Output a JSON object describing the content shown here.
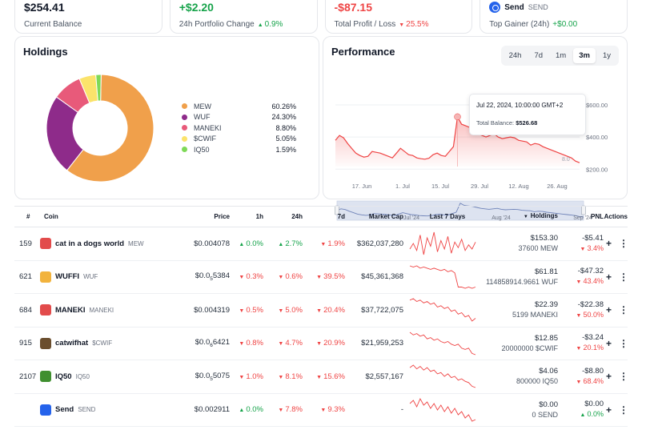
{
  "stats": [
    {
      "value": "$254.41",
      "label": "Current Balance"
    },
    {
      "value": "+$2.20",
      "label": "24h Portfolio Change",
      "change": "0.9%"
    },
    {
      "value": "-$87.15",
      "label": "Total Profit / Loss",
      "change": "25.5%"
    },
    {
      "coin_name": "Send",
      "coin_symbol": "SEND",
      "label": "Top Gainer (24h)",
      "change": "+$0.00"
    }
  ],
  "holdings": {
    "title": "Holdings",
    "items": [
      {
        "name": "MEW",
        "pct": "60.26%",
        "value": 60.26,
        "color": "#f0a04b"
      },
      {
        "name": "WUF",
        "pct": "24.30%",
        "value": 24.3,
        "color": "#8e2b8a"
      },
      {
        "name": "MANEKI",
        "pct": "8.80%",
        "value": 8.8,
        "color": "#e85a7a"
      },
      {
        "name": "$CWIF",
        "pct": "5.05%",
        "value": 5.05,
        "color": "#fbe36b"
      },
      {
        "name": "IQ50",
        "pct": "1.59%",
        "value": 1.59,
        "color": "#7ed957"
      }
    ]
  },
  "performance": {
    "title": "Performance",
    "ranges": [
      "24h",
      "7d",
      "1m",
      "3m",
      "1y"
    ],
    "active_range": "3m",
    "y_ticks": [
      "$600.00",
      "$400.00",
      "$200.00"
    ],
    "x_ticks": [
      "17. Jun",
      "1. Jul",
      "15. Jul",
      "29. Jul",
      "12. Aug",
      "26. Aug"
    ],
    "nav_ticks": [
      "Jul '24",
      "Aug '24",
      "Sep '24"
    ],
    "hidden_label": "8.0",
    "tooltip": {
      "date": "Jul 22, 2024, 10:00:00 GMT+2",
      "balance_label": "Total Balance:",
      "balance": "$526.68"
    },
    "series": [
      380,
      410,
      395,
      360,
      330,
      300,
      285,
      275,
      280,
      310,
      305,
      300,
      290,
      280,
      270,
      300,
      330,
      310,
      290,
      285,
      270,
      265,
      262,
      268,
      290,
      300,
      285,
      280,
      310,
      340,
      526,
      480,
      470,
      460,
      440,
      420,
      410,
      400,
      410,
      420,
      400,
      390,
      395,
      400,
      395,
      380,
      375,
      370,
      350,
      360,
      355,
      340,
      330,
      320,
      310,
      300,
      290,
      280,
      270,
      250,
      240
    ]
  },
  "table": {
    "headers": {
      "rank": "#",
      "coin": "Coin",
      "price": "Price",
      "h1": "1h",
      "h24": "24h",
      "d7": "7d",
      "mcap": "Market Cap",
      "spark": "Last 7 Days",
      "holdings": "Holdings",
      "pnl": "PNL",
      "actions": "Actions"
    },
    "rows": [
      {
        "rank": "159",
        "name": "cat in a dogs world",
        "symbol": "MEW",
        "icon": "mew-icon",
        "icon_color": "#e24b4b",
        "price": "$0.004078",
        "price_base": "",
        "price_sub": "",
        "price_tail": "",
        "h1": "0.0%",
        "h1_dir": "up",
        "h24": "2.7%",
        "h24_dir": "up",
        "d7": "1.9%",
        "d7_dir": "down",
        "mcap": "$362,037,280",
        "value": "$153.30",
        "amount": "37600 MEW",
        "pnl": "-$5.41",
        "pnl_pct": "3.4%",
        "pnl_dir": "down",
        "spark": [
          10,
          14,
          9,
          20,
          6,
          18,
          12,
          22,
          8,
          16,
          10,
          19,
          7,
          15,
          11,
          17,
          9,
          13,
          10,
          15
        ]
      },
      {
        "rank": "621",
        "name": "WUFFI",
        "symbol": "WUF",
        "icon": "wuffi-icon",
        "icon_color": "#f2b33d",
        "price": "",
        "price_base": "$0.0",
        "price_sub": "5",
        "price_tail": "5384",
        "h1": "0.3%",
        "h1_dir": "down",
        "h24": "0.6%",
        "h24_dir": "down",
        "d7": "39.5%",
        "d7_dir": "down",
        "mcap": "$45,361,368",
        "value": "$61.81",
        "amount": "114858914.9661 WUF",
        "pnl": "-$47.32",
        "pnl_pct": "43.4%",
        "pnl_dir": "down",
        "spark": [
          22,
          21,
          22,
          20,
          21,
          20,
          19,
          20,
          19,
          18,
          19,
          17,
          18,
          16,
          4,
          4,
          3,
          4,
          3,
          4
        ]
      },
      {
        "rank": "684",
        "name": "MANEKI",
        "symbol": "MANEKI",
        "icon": "maneki-icon",
        "icon_color": "#e24b4b",
        "price": "$0.004319",
        "price_base": "",
        "price_sub": "",
        "price_tail": "",
        "h1": "0.5%",
        "h1_dir": "down",
        "h24": "5.0%",
        "h24_dir": "down",
        "d7": "20.4%",
        "d7_dir": "down",
        "mcap": "$37,722,075",
        "value": "$22.39",
        "amount": "5199 MANEKI",
        "pnl": "-$22.38",
        "pnl_pct": "50.0%",
        "pnl_dir": "down",
        "spark": [
          20,
          21,
          19,
          20,
          18,
          19,
          17,
          18,
          15,
          16,
          14,
          15,
          12,
          13,
          10,
          11,
          8,
          9,
          5,
          7
        ]
      },
      {
        "rank": "915",
        "name": "catwifhat",
        "symbol": "$CWIF",
        "icon": "cwif-icon",
        "icon_color": "#6b4e2e",
        "price": "",
        "price_base": "$0.0",
        "price_sub": "6",
        "price_tail": "6421",
        "h1": "0.8%",
        "h1_dir": "down",
        "h24": "4.7%",
        "h24_dir": "down",
        "d7": "20.9%",
        "d7_dir": "down",
        "mcap": "$21,959,253",
        "value": "$12.85",
        "amount": "20000000 $CWIF",
        "pnl": "-$3.24",
        "pnl_pct": "20.1%",
        "pnl_dir": "down",
        "spark": [
          22,
          20,
          21,
          19,
          20,
          17,
          18,
          16,
          17,
          15,
          14,
          15,
          13,
          12,
          13,
          10,
          9,
          10,
          6,
          5
        ]
      },
      {
        "rank": "2107",
        "name": "IQ50",
        "symbol": "IQ50",
        "icon": "iq50-icon",
        "icon_color": "#3f8f2f",
        "price": "",
        "price_base": "$0.0",
        "price_sub": "5",
        "price_tail": "5075",
        "h1": "1.0%",
        "h1_dir": "down",
        "h24": "8.1%",
        "h24_dir": "down",
        "d7": "15.6%",
        "d7_dir": "down",
        "mcap": "$2,557,167",
        "value": "$4.06",
        "amount": "800000 IQ50",
        "pnl": "-$8.80",
        "pnl_pct": "68.4%",
        "pnl_dir": "down",
        "spark": [
          20,
          22,
          19,
          21,
          18,
          20,
          17,
          18,
          15,
          16,
          13,
          15,
          12,
          13,
          10,
          11,
          9,
          8,
          5,
          4
        ]
      },
      {
        "rank": "",
        "name": "Send",
        "symbol": "SEND",
        "icon": "send-icon",
        "icon_color": "#2563eb",
        "price": "$0.002911",
        "price_base": "",
        "price_sub": "",
        "price_tail": "",
        "h1": "0.0%",
        "h1_dir": "up",
        "h24": "7.8%",
        "h24_dir": "down",
        "d7": "9.3%",
        "d7_dir": "down",
        "mcap": "-",
        "value": "$0.00",
        "amount": "0 SEND",
        "pnl": "$0.00",
        "pnl_pct": "0.0%",
        "pnl_dir": "up",
        "spark": [
          18,
          20,
          16,
          21,
          17,
          19,
          15,
          18,
          14,
          17,
          13,
          16,
          12,
          15,
          11,
          13,
          9,
          11,
          7,
          8
        ]
      }
    ]
  }
}
